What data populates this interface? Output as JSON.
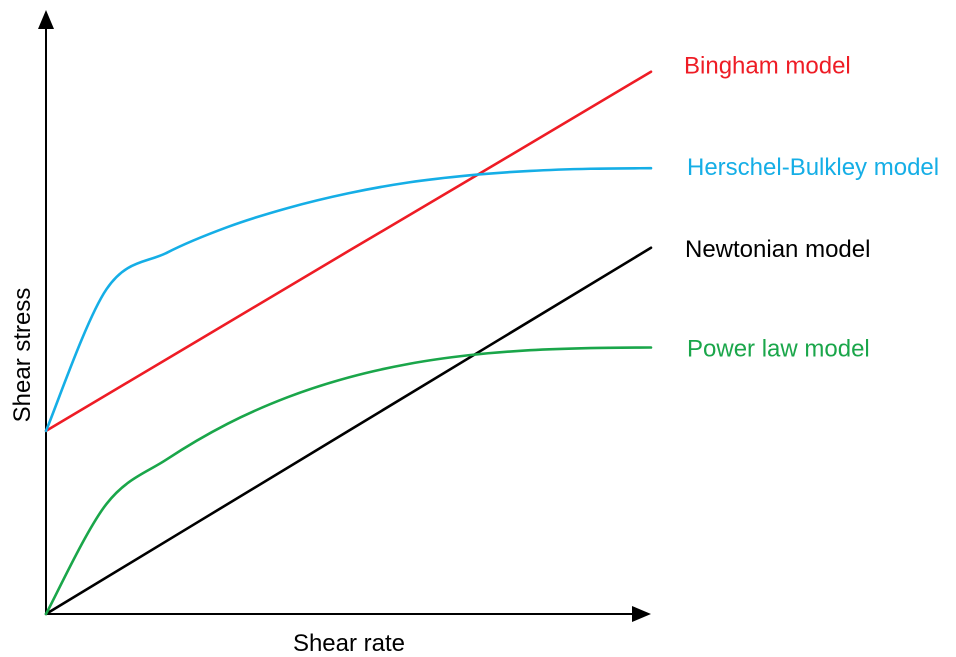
{
  "chart_data": {
    "type": "line",
    "title": "",
    "xlabel": "Shear rate",
    "ylabel": "Shear stress",
    "xlim": [
      0,
      1
    ],
    "ylim": [
      0,
      1
    ],
    "grid": false,
    "ticks": false,
    "legend": "inline labels at right end of each curve",
    "series": [
      {
        "name": "Bingham model",
        "color": "#ee1c25",
        "shape": "linear",
        "x": [
          0,
          0.25,
          0.5,
          0.75,
          1.0
        ],
        "y": [
          0.336,
          0.501,
          0.666,
          0.83,
          0.995
        ]
      },
      {
        "name": "Herschel-Bulkley model",
        "color": "#15aee6",
        "shape": "curved",
        "x": [
          0,
          0.1,
          0.2,
          0.3,
          0.4,
          0.5,
          0.6,
          0.7,
          0.8,
          0.9,
          1.0
        ],
        "y": [
          0.336,
          0.596,
          0.663,
          0.71,
          0.745,
          0.772,
          0.792,
          0.805,
          0.813,
          0.817,
          0.818
        ]
      },
      {
        "name": "Newtonian model",
        "color": "#000000",
        "shape": "linear",
        "x": [
          0,
          0.25,
          0.5,
          0.75,
          1.0
        ],
        "y": [
          0,
          0.168,
          0.336,
          0.504,
          0.672
        ]
      },
      {
        "name": "Power law model",
        "color": "#1aa64a",
        "shape": "curved",
        "x": [
          0,
          0.1,
          0.2,
          0.3,
          0.4,
          0.5,
          0.6,
          0.7,
          0.8,
          0.9,
          1.0
        ],
        "y": [
          0,
          0.202,
          0.284,
          0.349,
          0.398,
          0.434,
          0.459,
          0.475,
          0.484,
          0.488,
          0.489
        ]
      }
    ]
  }
}
